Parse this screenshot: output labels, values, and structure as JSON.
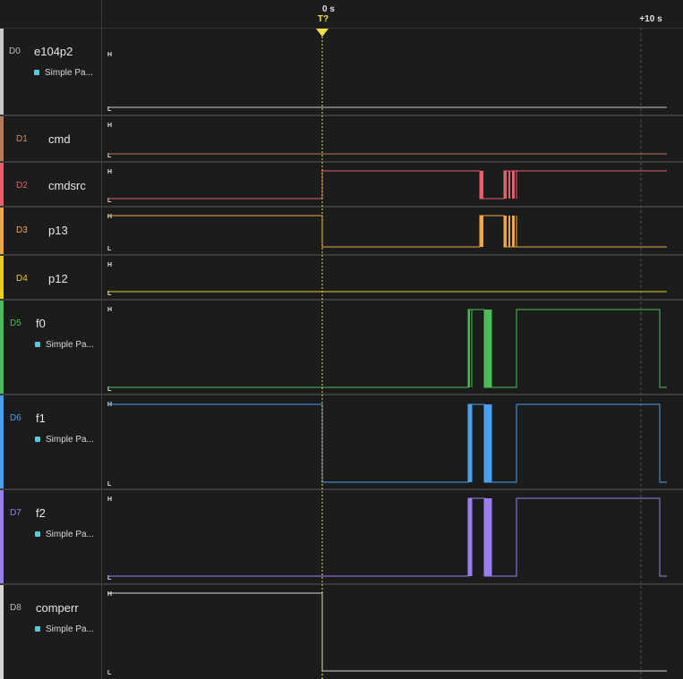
{
  "ruler": {
    "zero_label": "0 s",
    "trigger_label": "T?",
    "plus10_label": "+10 s"
  },
  "level_labels": {
    "high": "H",
    "low": "L"
  },
  "channels": [
    {
      "id": "D0",
      "name": "e104p2",
      "color": "#c8c8c8",
      "id_color": "#bdbdbd",
      "decoder": "Simple Pa..."
    },
    {
      "id": "D1",
      "name": "cmd",
      "color": "#b57a56",
      "id_color": "#c88e6a"
    },
    {
      "id": "D2",
      "name": "cmdsrc",
      "color": "#e4606c",
      "id_color": "#e4606c"
    },
    {
      "id": "D3",
      "name": "p13",
      "color": "#f0a54a",
      "id_color": "#f0a54a"
    },
    {
      "id": "D4",
      "name": "p12",
      "color": "#e8cc2a",
      "id_color": "#e8cc2a"
    },
    {
      "id": "D5",
      "name": "f0",
      "color": "#4cbc5a",
      "id_color": "#4cbc5a",
      "decoder": "Simple Pa..."
    },
    {
      "id": "D6",
      "name": "f1",
      "color": "#4aa0f0",
      "id_color": "#4aa0f0",
      "decoder": "Simple Pa..."
    },
    {
      "id": "D7",
      "name": "f2",
      "color": "#9a7ef0",
      "id_color": "#9a7ef0",
      "decoder": "Simple Pa..."
    },
    {
      "id": "D8",
      "name": "comperr",
      "color": "#d6d6d6",
      "id_color": "#bdbdbd",
      "decoder": "Simple Pa..."
    }
  ]
}
